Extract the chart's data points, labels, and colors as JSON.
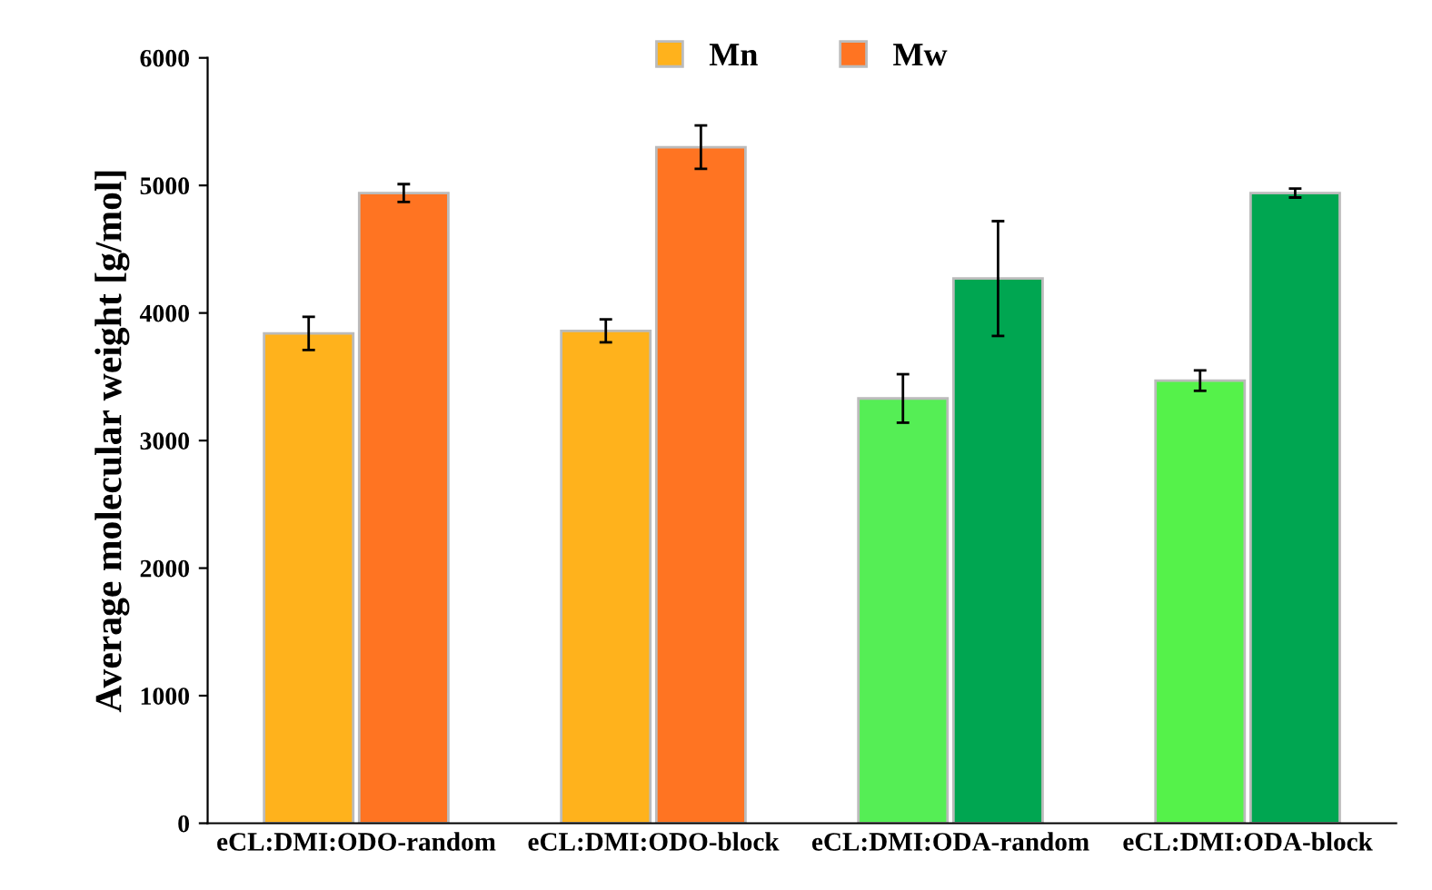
{
  "chart_data": {
    "type": "bar",
    "ylabel": "Average molecular weight [g/mol]",
    "categories": [
      "eCL:DMI:ODO-random",
      "eCL:DMI:ODO-block",
      "eCL:DMI:ODA-random",
      "eCL:DMI:ODA-block"
    ],
    "series": [
      {
        "name": "Mn",
        "color": "#ffb21c",
        "colors": [
          "#ffb21c",
          "#ffb21c",
          "#55ee55",
          "#55f24a"
        ],
        "values": [
          3840,
          3860,
          3330,
          3470
        ],
        "errors": [
          130,
          90,
          190,
          80
        ]
      },
      {
        "name": "Mw",
        "color": "#ff7422",
        "colors": [
          "#ff7422",
          "#ff7422",
          "#00a651",
          "#00a651"
        ],
        "values": [
          4940,
          5300,
          4270,
          4940
        ],
        "errors": [
          70,
          170,
          450,
          35
        ]
      }
    ],
    "ylim": [
      0,
      6000
    ],
    "yticks": [
      0,
      1000,
      2000,
      3000,
      4000,
      5000,
      6000
    ],
    "grid": false,
    "legend": "top"
  }
}
